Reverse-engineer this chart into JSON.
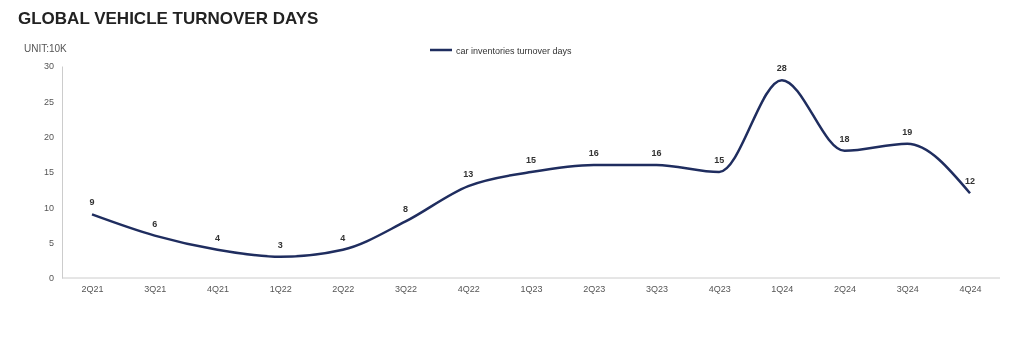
{
  "chart_data": {
    "type": "line",
    "title": "GLOBAL VEHICLE TURNOVER DAYS",
    "ylabel": "UNIT:10K",
    "categories": [
      "2Q21",
      "3Q21",
      "4Q21",
      "1Q22",
      "2Q22",
      "3Q22",
      "4Q22",
      "1Q23",
      "2Q23",
      "3Q23",
      "4Q23",
      "1Q24",
      "2Q24",
      "3Q24",
      "4Q24"
    ],
    "series": [
      {
        "name": "car inventories turnover days",
        "color": "#1f2d5f",
        "values": [
          9,
          6,
          4,
          3,
          4,
          8,
          13,
          15,
          16,
          16,
          15,
          28,
          18,
          19,
          12
        ]
      }
    ],
    "ylim": [
      0,
      30
    ],
    "yticks": [
      0,
      5,
      10,
      15,
      20,
      25,
      30
    ],
    "grid": false,
    "legend": "top",
    "data_labels": true,
    "marker": "none",
    "line_style": "solid"
  }
}
